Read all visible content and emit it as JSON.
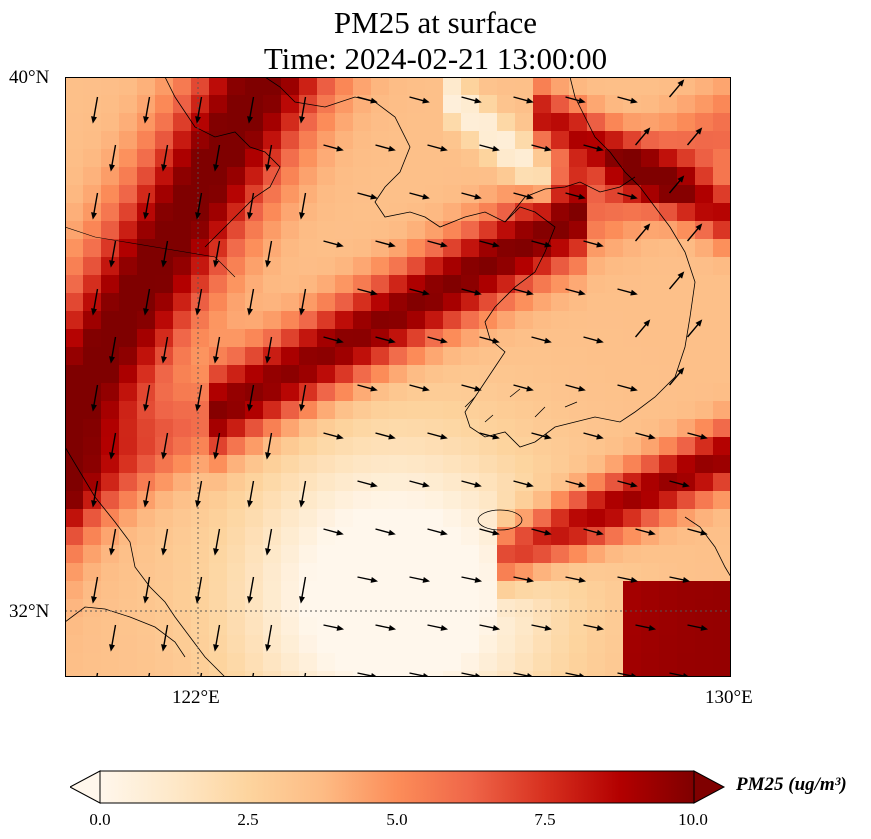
{
  "title": {
    "line1": "PM25 at surface",
    "line2": "Time: 2024-02-21 13:00:00"
  },
  "axes": {
    "lat_labels": [
      "40°N",
      "32°N"
    ],
    "lon_labels": [
      "122°E",
      "130°E"
    ],
    "lat_range": [
      31,
      40
    ],
    "lon_range": [
      120,
      130
    ],
    "gridlines": {
      "lon": 122,
      "lat": 32,
      "style": "dotted"
    }
  },
  "colorbar": {
    "label": "PM25 (ug/m³)",
    "ticks": [
      "0.0",
      "2.5",
      "5.0",
      "7.5",
      "10.0"
    ],
    "vmin": 0,
    "vmax": 10,
    "colormap": "OrRd",
    "colors": [
      "#fff7ec",
      "#fee8c8",
      "#fdd49e",
      "#fdbb84",
      "#fc8d59",
      "#ef6548",
      "#d7301f",
      "#b30000",
      "#7f0000"
    ]
  },
  "field": {
    "description_units": "ug/m3",
    "wind_vectors": true
  }
}
